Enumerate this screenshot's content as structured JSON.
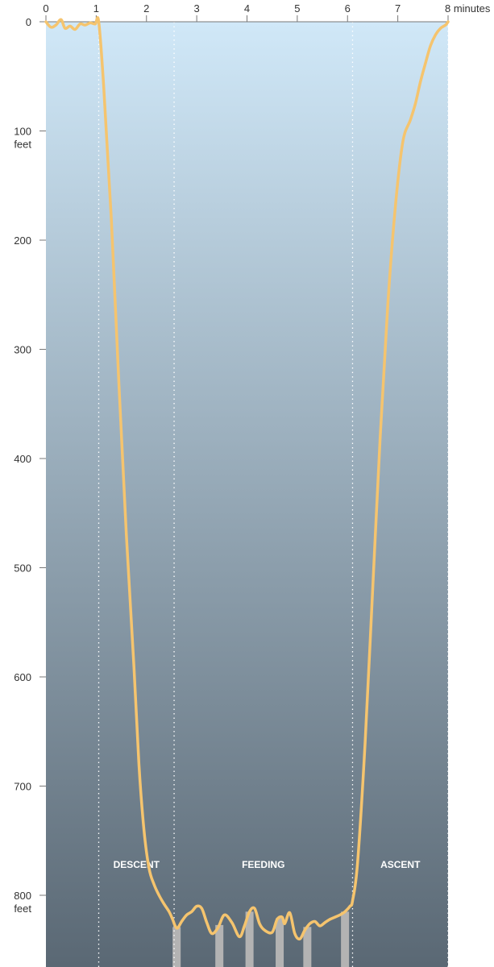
{
  "chart_data": {
    "type": "line",
    "x_unit": "minutes",
    "y_unit": "feet",
    "xlim": [
      0,
      8
    ],
    "ylim": [
      0,
      865
    ],
    "y_inverted": true,
    "grid": false,
    "x_ticks": [
      {
        "value": 0,
        "label": "0"
      },
      {
        "value": 1,
        "label": "1"
      },
      {
        "value": 2,
        "label": "2"
      },
      {
        "value": 3,
        "label": "3"
      },
      {
        "value": 4,
        "label": "4"
      },
      {
        "value": 5,
        "label": "5"
      },
      {
        "value": 6,
        "label": "6"
      },
      {
        "value": 7,
        "label": "7"
      },
      {
        "value": 8,
        "label": "8 minutes"
      }
    ],
    "y_ticks": [
      {
        "value": 0,
        "label": "0",
        "unit": ""
      },
      {
        "value": 100,
        "label": "100",
        "unit": "feet"
      },
      {
        "value": 200,
        "label": "200",
        "unit": ""
      },
      {
        "value": 300,
        "label": "300",
        "unit": ""
      },
      {
        "value": 400,
        "label": "400",
        "unit": ""
      },
      {
        "value": 500,
        "label": "500",
        "unit": ""
      },
      {
        "value": 600,
        "label": "600",
        "unit": ""
      },
      {
        "value": 700,
        "label": "700",
        "unit": ""
      },
      {
        "value": 800,
        "label": "800",
        "unit": "feet"
      }
    ],
    "phases": [
      {
        "label": "DESCENT",
        "start": 1.05,
        "end": 2.55
      },
      {
        "label": "FEEDING",
        "start": 2.55,
        "end": 6.1
      },
      {
        "label": "ASCENT",
        "start": 6.1,
        "end": 8.0
      }
    ],
    "phase_label_depth": 775,
    "lunges": [
      2.6,
      3.45,
      4.05,
      4.65,
      5.2,
      5.95
    ],
    "series": [
      {
        "color": "#f5c46e",
        "x": [
          0,
          0.1,
          0.2,
          0.3,
          0.38,
          0.48,
          0.58,
          0.68,
          0.78,
          0.88,
          0.98,
          1.05,
          1.15,
          1.3,
          1.45,
          1.6,
          1.75,
          1.85,
          1.95,
          2.05,
          2.15,
          2.25,
          2.35,
          2.45,
          2.52,
          2.57,
          2.62,
          2.7,
          2.8,
          2.9,
          3.0,
          3.1,
          3.2,
          3.3,
          3.42,
          3.55,
          3.7,
          3.85,
          3.95,
          4.05,
          4.15,
          4.25,
          4.35,
          4.5,
          4.6,
          4.7,
          4.75,
          4.85,
          4.95,
          5.05,
          5.15,
          5.25,
          5.35,
          5.45,
          5.55,
          5.65,
          5.75,
          5.85,
          5.95,
          6.05,
          6.1,
          6.2,
          6.35,
          6.5,
          6.65,
          6.8,
          6.95,
          7.1,
          7.25,
          7.35,
          7.45,
          7.55,
          7.65,
          7.75,
          7.85,
          7.95,
          8.0
        ],
        "y": [
          0,
          5,
          3,
          -2,
          6,
          4,
          7,
          2,
          3,
          1,
          2,
          0,
          60,
          180,
          330,
          470,
          590,
          680,
          740,
          775,
          790,
          800,
          808,
          815,
          822,
          828,
          830,
          824,
          818,
          815,
          810,
          812,
          825,
          835,
          830,
          818,
          825,
          838,
          828,
          815,
          812,
          826,
          832,
          834,
          822,
          820,
          826,
          816,
          835,
          840,
          832,
          826,
          824,
          828,
          825,
          822,
          820,
          818,
          815,
          810,
          805,
          770,
          660,
          520,
          380,
          260,
          170,
          110,
          90,
          75,
          55,
          38,
          22,
          12,
          6,
          3,
          0
        ]
      }
    ]
  },
  "colors": {
    "water_top": "#d0e8f8",
    "water_bottom": "#5a6874",
    "line": "#f5c46e",
    "lunge_bar": "#b3b3b3",
    "phase_divider": "#ffffff"
  }
}
